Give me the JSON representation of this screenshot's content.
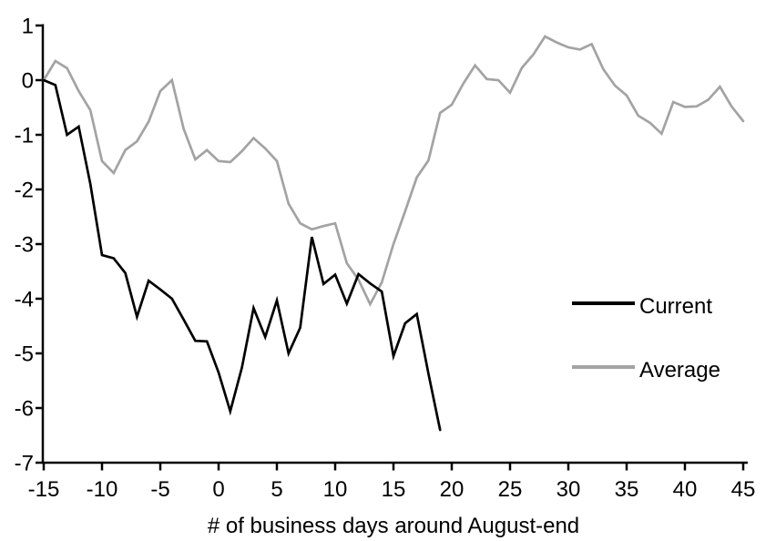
{
  "chart_data": {
    "type": "line",
    "title": "",
    "xlabel": "# of business days around August-end",
    "ylabel": "",
    "xlim": [
      -15,
      45
    ],
    "ylim": [
      -7,
      1
    ],
    "x_ticks": [
      -15,
      -10,
      -5,
      0,
      5,
      10,
      15,
      20,
      25,
      30,
      35,
      40,
      45
    ],
    "y_ticks": [
      1,
      0,
      -1,
      -2,
      -3,
      -4,
      -5,
      -6,
      -7
    ],
    "grid": false,
    "axis_color": "#000000",
    "background_color": "#ffffff",
    "legend_position": "right-middle",
    "series": [
      {
        "name": "Current",
        "color": "#000000",
        "x": [
          -15,
          -14,
          -13,
          -12,
          -11,
          -10,
          -9,
          -8,
          -7,
          -6,
          -5,
          -4,
          -3,
          -2,
          -1,
          0,
          1,
          2,
          3,
          4,
          5,
          6,
          7,
          8,
          9,
          10,
          11,
          12,
          13,
          14,
          15,
          16,
          17,
          18,
          19
        ],
        "y": [
          0,
          -0.09,
          -1.0,
          -0.85,
          -1.9,
          -3.2,
          -3.26,
          -3.53,
          -4.33,
          -3.67,
          -3.83,
          -4.0,
          -4.38,
          -4.77,
          -4.78,
          -5.35,
          -6.06,
          -5.26,
          -4.17,
          -4.7,
          -4.03,
          -5.0,
          -4.53,
          -2.87,
          -3.73,
          -3.56,
          -4.09,
          -3.55,
          -3.72,
          -3.87,
          -5.05,
          -4.45,
          -4.28,
          -5.37,
          -6.4
        ]
      },
      {
        "name": "Average",
        "color": "#a3a3a3",
        "x": [
          -15,
          -14,
          -13,
          -12,
          -11,
          -10,
          -9,
          -8,
          -7,
          -6,
          -5,
          -4,
          -3,
          -2,
          -1,
          0,
          1,
          2,
          3,
          4,
          5,
          6,
          7,
          8,
          9,
          10,
          11,
          12,
          13,
          14,
          15,
          16,
          17,
          18,
          19,
          20,
          21,
          22,
          23,
          24,
          25,
          26,
          27,
          28,
          29,
          30,
          31,
          32,
          33,
          34,
          35,
          36,
          37,
          38,
          39,
          40,
          41,
          42,
          43,
          44,
          45
        ],
        "y": [
          0,
          0.35,
          0.22,
          -0.2,
          -0.55,
          -1.48,
          -1.7,
          -1.28,
          -1.12,
          -0.76,
          -0.2,
          0.0,
          -0.89,
          -1.45,
          -1.28,
          -1.48,
          -1.5,
          -1.3,
          -1.06,
          -1.25,
          -1.48,
          -2.26,
          -2.62,
          -2.73,
          -2.67,
          -2.62,
          -3.35,
          -3.65,
          -4.1,
          -3.7,
          -3.0,
          -2.4,
          -1.78,
          -1.47,
          -0.6,
          -0.45,
          -0.06,
          0.27,
          0.02,
          0.0,
          -0.23,
          0.22,
          0.47,
          0.8,
          0.69,
          0.6,
          0.56,
          0.66,
          0.2,
          -0.1,
          -0.28,
          -0.65,
          -0.78,
          -0.98,
          -0.4,
          -0.49,
          -0.48,
          -0.36,
          -0.12,
          -0.48,
          -0.75
        ]
      }
    ]
  }
}
